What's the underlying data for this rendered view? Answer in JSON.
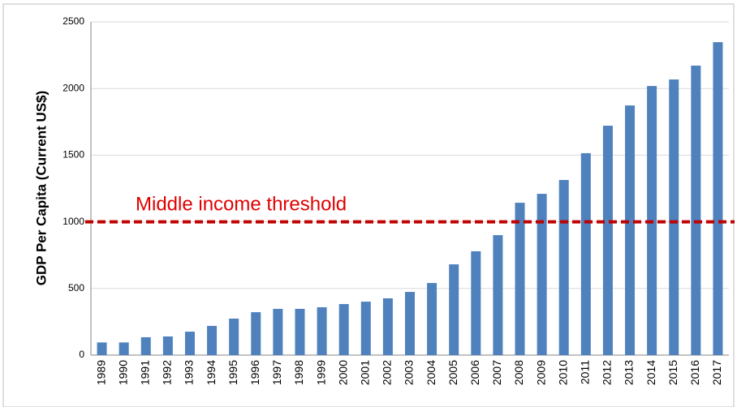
{
  "chart_data": {
    "type": "bar",
    "y_label": "GDP Per Capita (Current US$)",
    "categories": [
      "1989",
      "1990",
      "1991",
      "1992",
      "1993",
      "1994",
      "1995",
      "1996",
      "1997",
      "1998",
      "1999",
      "2000",
      "2001",
      "2002",
      "2003",
      "2004",
      "2005",
      "2006",
      "2007",
      "2008",
      "2009",
      "2010",
      "2011",
      "2012",
      "2013",
      "2014",
      "2015",
      "2016",
      "2017"
    ],
    "values": [
      95,
      95,
      134,
      140,
      176,
      219,
      274,
      322,
      347,
      347,
      359,
      383,
      401,
      426,
      474,
      541,
      681,
      779,
      900,
      1143,
      1210,
      1314,
      1515,
      1721,
      1873,
      2019,
      2068,
      2172,
      2348
    ],
    "color": "#4f81bd",
    "ylim": [
      0,
      2500
    ],
    "yticks": [
      0,
      500,
      1000,
      1500,
      2000,
      2500
    ],
    "grid": true,
    "threshold": {
      "value": 1000,
      "label": "Middle income threshold",
      "color": "#c00000"
    }
  }
}
